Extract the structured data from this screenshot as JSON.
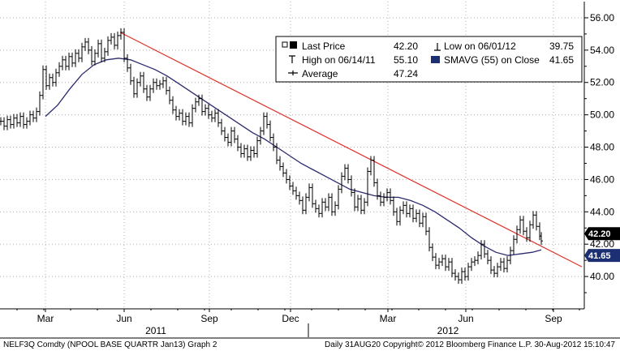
{
  "chart_data": {
    "type": "line",
    "ticker": "NELF3Q Comdty (NPOOL BASE QUARTR Jan13) Graph 2",
    "footer_right": "Daily 31AUG20 Copyright© 2012 Bloomberg Finance L.P. 30-Aug-2012 15:10:47",
    "ylim": [
      38.0,
      57.0
    ],
    "yticks": [
      "40.00",
      "42.00",
      "44.00",
      "46.00",
      "48.00",
      "50.00",
      "52.00",
      "54.00",
      "56.00"
    ],
    "month_labels": [
      "Mar",
      "Jun",
      "Sep",
      "Dec",
      "Mar",
      "Jun",
      "Sep"
    ],
    "year_labels": [
      "2011",
      "2012"
    ],
    "legend": {
      "last_price_label": "Last Price",
      "last_price_value": "42.20",
      "high_label": "High on 06/14/11",
      "high_value": "55.10",
      "average_label": "Average",
      "average_value": "47.24",
      "low_label": "Low on 06/01/12",
      "low_value": "39.75",
      "smavg_label": "SMAVG (55) on Close",
      "smavg_value": "41.65"
    },
    "last_price_tag": "42.20",
    "smavg_tag": "41.65",
    "price_series": {
      "name": "Last Price",
      "points": [
        [
          0,
          49.6
        ],
        [
          4,
          49.3
        ],
        [
          8,
          49.7
        ],
        [
          12,
          49.4
        ],
        [
          16,
          49.8
        ],
        [
          20,
          49.5
        ],
        [
          24,
          49.9
        ],
        [
          28,
          49.4
        ],
        [
          32,
          49.6
        ],
        [
          36,
          50.0
        ],
        [
          40,
          49.8
        ],
        [
          44,
          50.2
        ],
        [
          48,
          51.2
        ],
        [
          52,
          52.8
        ],
        [
          56,
          51.8
        ],
        [
          60,
          52.3
        ],
        [
          64,
          52.0
        ],
        [
          68,
          52.6
        ],
        [
          72,
          53.0
        ],
        [
          76,
          53.4
        ],
        [
          80,
          53.0
        ],
        [
          84,
          53.6
        ],
        [
          88,
          53.2
        ],
        [
          92,
          53.8
        ],
        [
          96,
          53.5
        ],
        [
          100,
          54.2
        ],
        [
          104,
          54.5
        ],
        [
          108,
          54.0
        ],
        [
          112,
          53.3
        ],
        [
          116,
          53.8
        ],
        [
          120,
          54.4
        ],
        [
          124,
          53.5
        ],
        [
          128,
          53.9
        ],
        [
          132,
          54.6
        ],
        [
          136,
          54.8
        ],
        [
          140,
          54.3
        ],
        [
          144,
          54.9
        ],
        [
          148,
          55.1
        ],
        [
          152,
          53.5
        ],
        [
          156,
          52.9
        ],
        [
          160,
          52.1
        ],
        [
          164,
          51.3
        ],
        [
          168,
          52.0
        ],
        [
          172,
          52.4
        ],
        [
          176,
          51.6
        ],
        [
          180,
          51.1
        ],
        [
          184,
          51.6
        ],
        [
          188,
          52.0
        ],
        [
          192,
          51.8
        ],
        [
          196,
          51.9
        ],
        [
          200,
          52.1
        ],
        [
          204,
          51.5
        ],
        [
          208,
          50.9
        ],
        [
          212,
          50.3
        ],
        [
          216,
          49.9
        ],
        [
          220,
          50.1
        ],
        [
          224,
          49.6
        ],
        [
          228,
          49.9
        ],
        [
          232,
          49.5
        ],
        [
          236,
          50.4
        ],
        [
          240,
          50.8
        ],
        [
          244,
          51.0
        ],
        [
          248,
          50.2
        ],
        [
          252,
          50.4
        ],
        [
          256,
          50.0
        ],
        [
          260,
          49.8
        ],
        [
          264,
          50.1
        ],
        [
          268,
          49.5
        ],
        [
          272,
          49.0
        ],
        [
          276,
          48.6
        ],
        [
          280,
          48.3
        ],
        [
          284,
          49.0
        ],
        [
          288,
          48.5
        ],
        [
          292,
          48.0
        ],
        [
          296,
          47.6
        ],
        [
          300,
          47.9
        ],
        [
          304,
          47.4
        ],
        [
          308,
          47.8
        ],
        [
          312,
          47.6
        ],
        [
          316,
          48.4
        ],
        [
          320,
          49.0
        ],
        [
          324,
          49.9
        ],
        [
          328,
          49.4
        ],
        [
          332,
          48.6
        ],
        [
          336,
          48.0
        ],
        [
          340,
          47.2
        ],
        [
          344,
          46.8
        ],
        [
          348,
          46.4
        ],
        [
          352,
          46.0
        ],
        [
          356,
          45.6
        ],
        [
          360,
          45.3
        ],
        [
          364,
          45.0
        ],
        [
          368,
          44.7
        ],
        [
          372,
          44.1
        ],
        [
          376,
          44.9
        ],
        [
          380,
          45.5
        ],
        [
          384,
          44.5
        ],
        [
          388,
          44.2
        ],
        [
          392,
          43.9
        ],
        [
          396,
          44.6
        ],
        [
          400,
          44.3
        ],
        [
          404,
          44.9
        ],
        [
          408,
          44.0
        ],
        [
          412,
          44.4
        ],
        [
          416,
          45.4
        ],
        [
          420,
          46.2
        ],
        [
          424,
          46.7
        ],
        [
          428,
          46.0
        ],
        [
          432,
          45.2
        ],
        [
          436,
          44.3
        ],
        [
          440,
          44.8
        ],
        [
          444,
          44.1
        ],
        [
          448,
          44.6
        ],
        [
          452,
          46.5
        ],
        [
          456,
          47.2
        ],
        [
          460,
          45.8
        ],
        [
          464,
          45.0
        ],
        [
          468,
          44.6
        ],
        [
          472,
          44.9
        ],
        [
          476,
          45.2
        ],
        [
          480,
          44.7
        ],
        [
          484,
          44.0
        ],
        [
          488,
          43.4
        ],
        [
          492,
          44.1
        ],
        [
          496,
          44.4
        ],
        [
          500,
          43.9
        ],
        [
          504,
          44.2
        ],
        [
          508,
          43.6
        ],
        [
          512,
          43.9
        ],
        [
          516,
          43.3
        ],
        [
          520,
          43.7
        ],
        [
          524,
          42.8
        ],
        [
          528,
          41.8
        ],
        [
          532,
          41.2
        ],
        [
          536,
          40.7
        ],
        [
          540,
          40.9
        ],
        [
          544,
          41.1
        ],
        [
          548,
          40.6
        ],
        [
          552,
          40.9
        ],
        [
          556,
          40.2
        ],
        [
          560,
          40.0
        ],
        [
          564,
          39.8
        ],
        [
          568,
          40.3
        ],
        [
          572,
          40.0
        ],
        [
          576,
          40.6
        ],
        [
          580,
          40.9
        ],
        [
          584,
          41.0
        ],
        [
          588,
          41.3
        ],
        [
          592,
          42.0
        ],
        [
          596,
          41.4
        ],
        [
          600,
          41.0
        ],
        [
          604,
          40.4
        ],
        [
          608,
          40.2
        ],
        [
          612,
          40.6
        ],
        [
          616,
          40.9
        ],
        [
          620,
          40.5
        ],
        [
          624,
          41.0
        ],
        [
          628,
          41.6
        ],
        [
          632,
          42.3
        ],
        [
          636,
          42.9
        ],
        [
          640,
          43.5
        ],
        [
          644,
          42.8
        ],
        [
          648,
          42.4
        ],
        [
          652,
          43.2
        ],
        [
          656,
          43.8
        ],
        [
          660,
          43.1
        ],
        [
          664,
          42.5
        ],
        [
          666,
          42.2
        ]
      ]
    },
    "smavg_series": {
      "name": "SMAVG (55) on Close",
      "points": [
        [
          55,
          49.9
        ],
        [
          70,
          50.6
        ],
        [
          85,
          51.6
        ],
        [
          100,
          52.5
        ],
        [
          115,
          53.1
        ],
        [
          130,
          53.4
        ],
        [
          145,
          53.5
        ],
        [
          160,
          53.4
        ],
        [
          175,
          53.1
        ],
        [
          190,
          52.8
        ],
        [
          205,
          52.4
        ],
        [
          220,
          51.9
        ],
        [
          235,
          51.4
        ],
        [
          250,
          50.9
        ],
        [
          265,
          50.4
        ],
        [
          280,
          49.9
        ],
        [
          295,
          49.4
        ],
        [
          310,
          48.9
        ],
        [
          325,
          48.5
        ],
        [
          340,
          48.0
        ],
        [
          355,
          47.5
        ],
        [
          370,
          47.0
        ],
        [
          385,
          46.6
        ],
        [
          400,
          46.2
        ],
        [
          415,
          45.8
        ],
        [
          430,
          45.4
        ],
        [
          445,
          45.2
        ],
        [
          460,
          45.0
        ],
        [
          475,
          44.9
        ],
        [
          490,
          44.9
        ],
        [
          505,
          44.7
        ],
        [
          520,
          44.4
        ],
        [
          535,
          44.0
        ],
        [
          550,
          43.5
        ],
        [
          565,
          43.0
        ],
        [
          580,
          42.4
        ],
        [
          595,
          41.9
        ],
        [
          610,
          41.5
        ],
        [
          625,
          41.3
        ],
        [
          640,
          41.4
        ],
        [
          655,
          41.5
        ],
        [
          666,
          41.65
        ]
      ]
    },
    "trendline": {
      "name": "Trend line",
      "points": [
        [
          147,
          55.1
        ],
        [
          716,
          40.6
        ]
      ]
    }
  },
  "colors": {
    "price": "#000000",
    "smavg": "#2a2a6e",
    "trend": "#e0302a",
    "last_tag": "#000000",
    "smavg_tag": "#1c2f73"
  }
}
